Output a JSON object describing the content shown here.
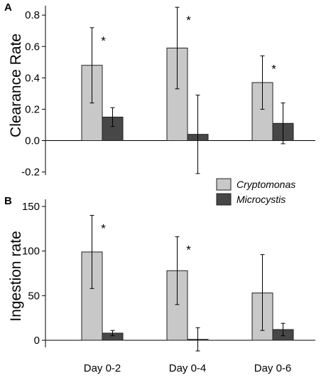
{
  "chart_data": [
    {
      "panel": "A",
      "type": "bar",
      "categories": [
        "Day 0-2",
        "Day 0-4",
        "Day 0-6"
      ],
      "ylabel": "Clearance Rate",
      "xlabel": "",
      "ylim": [
        -0.22,
        0.86
      ],
      "yticks": [
        -0.2,
        0.0,
        0.2,
        0.4,
        0.6,
        0.8
      ],
      "ytick_labels": [
        "-0.2",
        "0.0",
        "0.2",
        "0.4",
        "0.6",
        "0.8"
      ],
      "show_category_labels": false,
      "series": [
        {
          "name": "Cryptomonas",
          "color": "#c8c8c8",
          "values": [
            0.48,
            0.59,
            0.37
          ],
          "err_low": [
            0.24,
            0.33,
            0.2
          ],
          "err_high": [
            0.72,
            0.85,
            0.54
          ]
        },
        {
          "name": "Microcystis",
          "color": "#474747",
          "values": [
            0.15,
            0.04,
            0.11
          ],
          "err_low": [
            0.09,
            -0.21,
            -0.02
          ],
          "err_high": [
            0.21,
            0.29,
            0.24
          ]
        }
      ],
      "annotations": [
        {
          "category": 0,
          "text": "*"
        },
        {
          "category": 1,
          "text": "*"
        },
        {
          "category": 2,
          "text": "*"
        }
      ],
      "grid": false
    },
    {
      "panel": "B",
      "type": "bar",
      "categories": [
        "Day 0-2",
        "Day 0-4",
        "Day 0-6"
      ],
      "ylabel": "Ingestion rate",
      "xlabel": "",
      "ylim": [
        -8,
        158
      ],
      "yticks": [
        0,
        50,
        100,
        150
      ],
      "ytick_labels": [
        "0",
        "50",
        "100",
        "150"
      ],
      "show_category_labels": true,
      "series": [
        {
          "name": "Cryptomonas",
          "color": "#c8c8c8",
          "values": [
            99,
            78,
            53
          ],
          "err_low": [
            58,
            40,
            11
          ],
          "err_high": [
            140,
            116,
            96
          ]
        },
        {
          "name": "Microcystis",
          "color": "#474747",
          "values": [
            8,
            1,
            12
          ],
          "err_low": [
            5,
            -12,
            5
          ],
          "err_high": [
            11,
            14,
            19
          ]
        }
      ],
      "annotations": [
        {
          "category": 0,
          "text": "*"
        },
        {
          "category": 1,
          "text": "*"
        }
      ],
      "grid": false
    }
  ],
  "legend": {
    "placement": "between panels, right",
    "items": [
      {
        "label": "Cryptomonas",
        "color": "#c8c8c8"
      },
      {
        "label": "Microcystis",
        "color": "#474747"
      }
    ]
  }
}
